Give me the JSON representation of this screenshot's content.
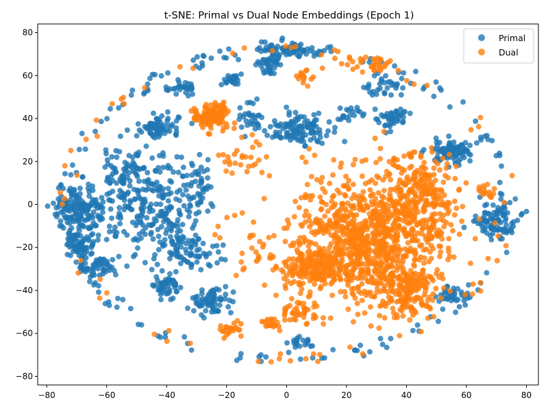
{
  "chart_data": {
    "type": "scatter",
    "title": "t-SNE: Primal vs Dual Node Embeddings (Epoch 1)",
    "xlabel": "",
    "ylabel": "",
    "xlim": [
      -83,
      84
    ],
    "ylim": [
      -84,
      84
    ],
    "xticks": [
      -80,
      -60,
      -40,
      -20,
      0,
      20,
      40,
      60,
      80
    ],
    "yticks": [
      -80,
      -60,
      -40,
      -20,
      0,
      20,
      40,
      60,
      80
    ],
    "xtick_labels": [
      "−80",
      "−60",
      "−40",
      "−20",
      "0",
      "20",
      "40",
      "60",
      "80"
    ],
    "ytick_labels": [
      "−80",
      "−60",
      "−40",
      "−20",
      "0",
      "20",
      "40",
      "60",
      "80"
    ],
    "grid": false,
    "legend_position": "top-right",
    "series": [
      {
        "name": "Primal",
        "color": "#1f77b4",
        "clusters": [
          {
            "cx": -68,
            "cy": -2,
            "rx": 8,
            "ry": 10,
            "n": 160
          },
          {
            "cx": -68,
            "cy": -18,
            "rx": 5,
            "ry": 6,
            "n": 60
          },
          {
            "cx": -63,
            "cy": -28,
            "rx": 6,
            "ry": 5,
            "n": 50
          },
          {
            "cx": -43,
            "cy": 35,
            "rx": 6,
            "ry": 5,
            "n": 70
          },
          {
            "cx": -45,
            "cy": 0,
            "rx": 13,
            "ry": 22,
            "n": 220
          },
          {
            "cx": -55,
            "cy": 15,
            "rx": 6,
            "ry": 12,
            "n": 60
          },
          {
            "cx": -40,
            "cy": -38,
            "rx": 5,
            "ry": 5,
            "n": 50
          },
          {
            "cx": -25,
            "cy": -45,
            "rx": 6,
            "ry": 5,
            "n": 70
          },
          {
            "cx": -32,
            "cy": -20,
            "rx": 10,
            "ry": 10,
            "n": 80
          },
          {
            "cx": -30,
            "cy": 10,
            "rx": 5,
            "ry": 14,
            "n": 50
          },
          {
            "cx": -35,
            "cy": 54,
            "rx": 4,
            "ry": 3,
            "n": 30
          },
          {
            "cx": -18,
            "cy": 58,
            "rx": 3,
            "ry": 3,
            "n": 25
          },
          {
            "cx": -5,
            "cy": 65,
            "rx": 4,
            "ry": 4,
            "n": 40
          },
          {
            "cx": 0,
            "cy": 72,
            "rx": 10,
            "ry": 3,
            "n": 60
          },
          {
            "cx": 5,
            "cy": 35,
            "rx": 9,
            "ry": 7,
            "n": 110
          },
          {
            "cx": 55,
            "cy": 25,
            "rx": 6,
            "ry": 5,
            "n": 90
          },
          {
            "cx": 35,
            "cy": 40,
            "rx": 5,
            "ry": 5,
            "n": 40
          },
          {
            "cx": 70,
            "cy": -8,
            "rx": 6,
            "ry": 8,
            "n": 90
          },
          {
            "cx": 55,
            "cy": -42,
            "rx": 4,
            "ry": 4,
            "n": 30
          },
          {
            "cx": 5,
            "cy": -64,
            "rx": 3,
            "ry": 3,
            "n": 20
          },
          {
            "cx": -12,
            "cy": 40,
            "rx": 4,
            "ry": 6,
            "n": 30
          },
          {
            "cx": 32,
            "cy": 55,
            "rx": 6,
            "ry": 5,
            "n": 30
          },
          {
            "cx": 22,
            "cy": 42,
            "rx": 5,
            "ry": 4,
            "n": 20
          }
        ],
        "ring_points": 180
      },
      {
        "name": "Dual",
        "color": "#ff7f0e",
        "clusters": [
          {
            "cx": 28,
            "cy": -15,
            "rx": 22,
            "ry": 28,
            "n": 950
          },
          {
            "cx": 40,
            "cy": -40,
            "rx": 8,
            "ry": 10,
            "n": 150
          },
          {
            "cx": 10,
            "cy": -30,
            "rx": 12,
            "ry": 8,
            "n": 180
          },
          {
            "cx": 45,
            "cy": 5,
            "rx": 10,
            "ry": 18,
            "n": 200
          },
          {
            "cx": 5,
            "cy": -50,
            "rx": 6,
            "ry": 5,
            "n": 40
          },
          {
            "cx": -25,
            "cy": 41,
            "rx": 6,
            "ry": 5,
            "n": 130
          },
          {
            "cx": -20,
            "cy": -58,
            "rx": 4,
            "ry": 3,
            "n": 25
          },
          {
            "cx": -5,
            "cy": -56,
            "rx": 3,
            "ry": 3,
            "n": 20
          },
          {
            "cx": 66,
            "cy": 6,
            "rx": 3,
            "ry": 3,
            "n": 15
          },
          {
            "cx": 28,
            "cy": 65,
            "rx": 8,
            "ry": 4,
            "n": 30
          },
          {
            "cx": -10,
            "cy": -20,
            "rx": 10,
            "ry": 14,
            "n": 30
          },
          {
            "cx": -15,
            "cy": 20,
            "rx": 12,
            "ry": 8,
            "n": 30
          },
          {
            "cx": 5,
            "cy": 60,
            "rx": 3,
            "ry": 3,
            "n": 15
          }
        ],
        "ring_points": 70
      }
    ]
  }
}
